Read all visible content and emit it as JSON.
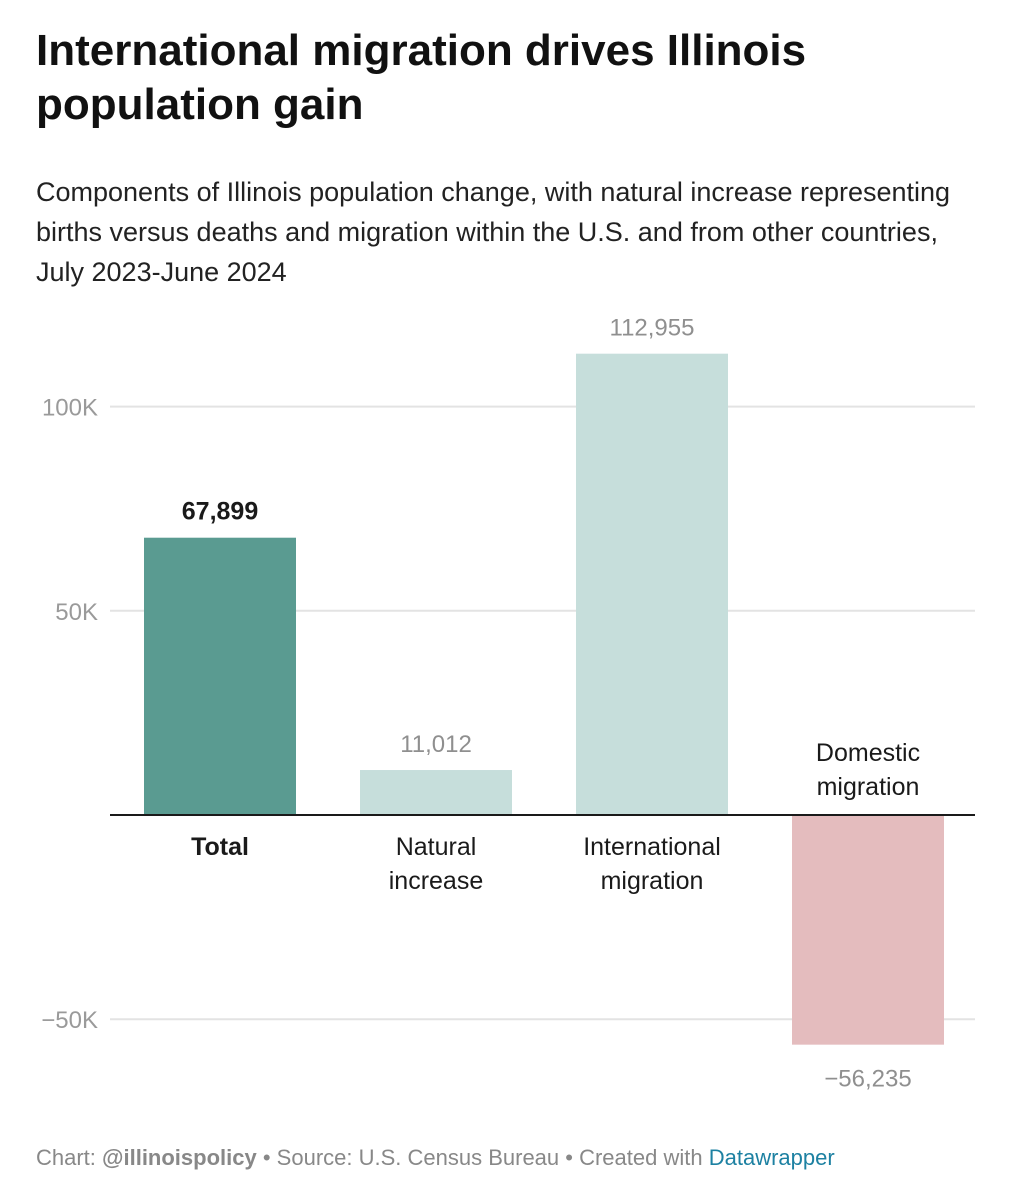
{
  "title": "International migration drives Illinois population gain",
  "subtitle": "Components of Illinois population change, with natural increase representing births versus deaths and migration within the U.S. and from other countries, July 2023-June 2024",
  "chart_data": {
    "type": "bar",
    "categories": [
      "Total",
      "Natural increase",
      "International migration",
      "Domestic migration"
    ],
    "category_lines": [
      [
        "Total"
      ],
      [
        "Natural",
        "increase"
      ],
      [
        "International",
        "migration"
      ],
      [
        "Domestic",
        "migration"
      ]
    ],
    "values": [
      67899,
      11012,
      112955,
      -56235
    ],
    "value_labels": [
      "67,899",
      "11,012",
      "112,955",
      "−56,235"
    ],
    "colors": [
      "#5a9b91",
      "#c6dedb",
      "#c6dedb",
      "#e4bcbe"
    ],
    "highlight_index": 0,
    "yticks": [
      100000,
      50000,
      -50000
    ],
    "ytick_labels": [
      "100K",
      "50K",
      "−50K"
    ],
    "ylim": [
      -60000,
      115000
    ],
    "xlabel": "",
    "ylabel": ""
  },
  "footer": {
    "chart_prefix": "Chart: ",
    "chart_credit": "@illinoispolicy",
    "separator1": " • ",
    "source": "Source: U.S. Census Bureau",
    "separator2": " • ",
    "created": "Created with ",
    "tool": "Datawrapper"
  }
}
